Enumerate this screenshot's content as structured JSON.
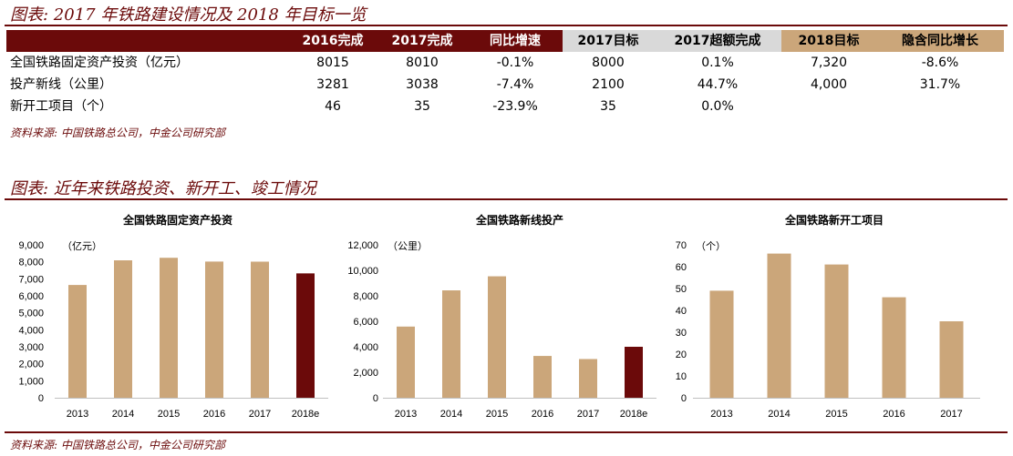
{
  "table_title": "图表: 2017 年铁路建设情况及 2018 年目标一览",
  "table": {
    "headers": [
      "",
      "2016完成",
      "2017完成",
      "同比增速",
      "2017目标",
      "2017超额完成",
      "2018目标",
      "隐含同比增长"
    ],
    "rows": [
      [
        "全国铁路固定资产投资（亿元）",
        "8015",
        "8010",
        "-0.1%",
        "8000",
        "0.1%",
        "7,320",
        "-8.6%"
      ],
      [
        "投产新线（公里）",
        "3281",
        "3038",
        "-7.4%",
        "2100",
        "44.7%",
        "4,000",
        "31.7%"
      ],
      [
        "新开工项目（个）",
        "46",
        "35",
        "-23.9%",
        "35",
        "0.0%",
        "",
        ""
      ]
    ]
  },
  "source_top": "资料来源: 中国铁路总公司，中金公司研究部",
  "charts_title": "图表: 近年来铁路投资、新开工、竣工情况",
  "source_bottom": "资料来源: 中国铁路总公司，中金公司研究部",
  "colors": {
    "brand": "#6b0a0a",
    "bar": "#cba67a",
    "bar_highlight": "#6b0a0a",
    "header_dark": "#6b0a0a",
    "header_gray": "#d9d9d9",
    "header_tan": "#cba67a"
  },
  "chart_data": [
    {
      "type": "bar",
      "title": "全国铁路固定资产投资",
      "unit_label": "（亿元）",
      "categories": [
        "2013",
        "2014",
        "2015",
        "2016",
        "2017",
        "2018e"
      ],
      "values": [
        6638,
        8088,
        8238,
        8015,
        8010,
        7320
      ],
      "highlight": [
        false,
        false,
        false,
        false,
        false,
        true
      ],
      "ylim": [
        0,
        9000
      ],
      "yticks": [
        "0",
        "1,000",
        "2,000",
        "3,000",
        "4,000",
        "5,000",
        "6,000",
        "7,000",
        "8,000",
        "9,000"
      ]
    },
    {
      "type": "bar",
      "title": "全国铁路新线投产",
      "unit_label": "（公里）",
      "categories": [
        "2013",
        "2014",
        "2015",
        "2016",
        "2017",
        "2018e"
      ],
      "values": [
        5586,
        8427,
        9531,
        3281,
        3038,
        4000
      ],
      "highlight": [
        false,
        false,
        false,
        false,
        false,
        true
      ],
      "ylim": [
        0,
        12000
      ],
      "yticks": [
        "0",
        "2,000",
        "4,000",
        "6,000",
        "8,000",
        "10,000",
        "12,000"
      ]
    },
    {
      "type": "bar",
      "title": "全国铁路新开工项目",
      "unit_label": "（个）",
      "categories": [
        "2013",
        "2014",
        "2015",
        "2016",
        "2017"
      ],
      "values": [
        49,
        66,
        61,
        46,
        35
      ],
      "highlight": [
        false,
        false,
        false,
        false,
        false
      ],
      "ylim": [
        0,
        70
      ],
      "yticks": [
        "0",
        "10",
        "20",
        "30",
        "40",
        "50",
        "60",
        "70"
      ]
    }
  ]
}
